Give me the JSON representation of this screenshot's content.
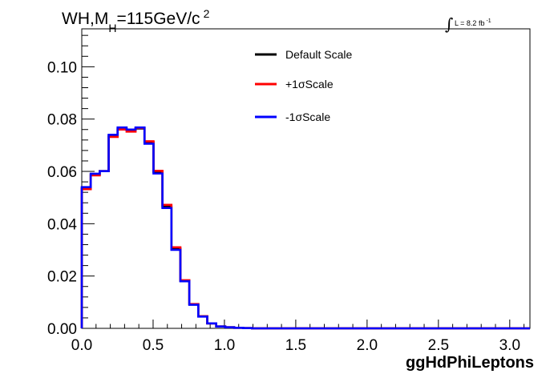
{
  "chart_data": {
    "type": "line",
    "title": {
      "main": "WH,M",
      "sub": "H",
      "rest": "=115GeV/c",
      "sup": "2"
    },
    "lumi": {
      "integral": "∫",
      "text": "L = 8.2 fb",
      "sup": "-1"
    },
    "xlabel": "ggHdPhiLeptons",
    "ylabel": "",
    "xlim": [
      0.0,
      3.14159
    ],
    "ylim": [
      0.0,
      0.1145
    ],
    "xticks": [
      0.0,
      0.5,
      1.0,
      1.5,
      2.0,
      2.5,
      3.0
    ],
    "xtick_labels": [
      "0.0",
      "0.5",
      "1.0",
      "1.5",
      "2.0",
      "2.5",
      "3.0"
    ],
    "yticks": [
      0.0,
      0.02,
      0.04,
      0.06,
      0.08,
      0.1
    ],
    "ytick_labels": [
      "0.00",
      "0.02",
      "0.04",
      "0.06",
      "0.08",
      "0.10"
    ],
    "bin_edges": [
      0.0,
      0.0628,
      0.1257,
      0.1885,
      0.2513,
      0.3142,
      0.377,
      0.4398,
      0.5027,
      0.5655,
      0.6283,
      0.6912,
      0.754,
      0.8168,
      0.8796,
      0.9425,
      1.0053,
      1.0681,
      1.131,
      1.1938,
      1.2566,
      3.14159
    ],
    "legend_position": "top-center",
    "series": [
      {
        "name": "Default Scale",
        "color": "#000000",
        "values": [
          0.0535,
          0.0588,
          0.0601,
          0.0735,
          0.0762,
          0.0758,
          0.0764,
          0.0712,
          0.0598,
          0.0465,
          0.0305,
          0.0182,
          0.0092,
          0.0046,
          0.0019,
          0.0007,
          0.0004,
          0.0002,
          0.0001,
          0.0,
          0.0
        ]
      },
      {
        "name": "+1σScale",
        "color": "#ff0000",
        "values": [
          0.0532,
          0.0585,
          0.0601,
          0.0732,
          0.076,
          0.0752,
          0.0766,
          0.0715,
          0.0602,
          0.0472,
          0.031,
          0.0184,
          0.0093,
          0.0046,
          0.0019,
          0.0007,
          0.0004,
          0.0002,
          0.0001,
          0.0,
          0.0
        ]
      },
      {
        "name": "-1σScale",
        "color": "#0000ff",
        "values": [
          0.054,
          0.0591,
          0.0601,
          0.074,
          0.0768,
          0.076,
          0.0768,
          0.0706,
          0.0592,
          0.046,
          0.03,
          0.018,
          0.009,
          0.0045,
          0.0019,
          0.0007,
          0.0004,
          0.0002,
          0.0001,
          0.0,
          0.0
        ]
      }
    ]
  }
}
